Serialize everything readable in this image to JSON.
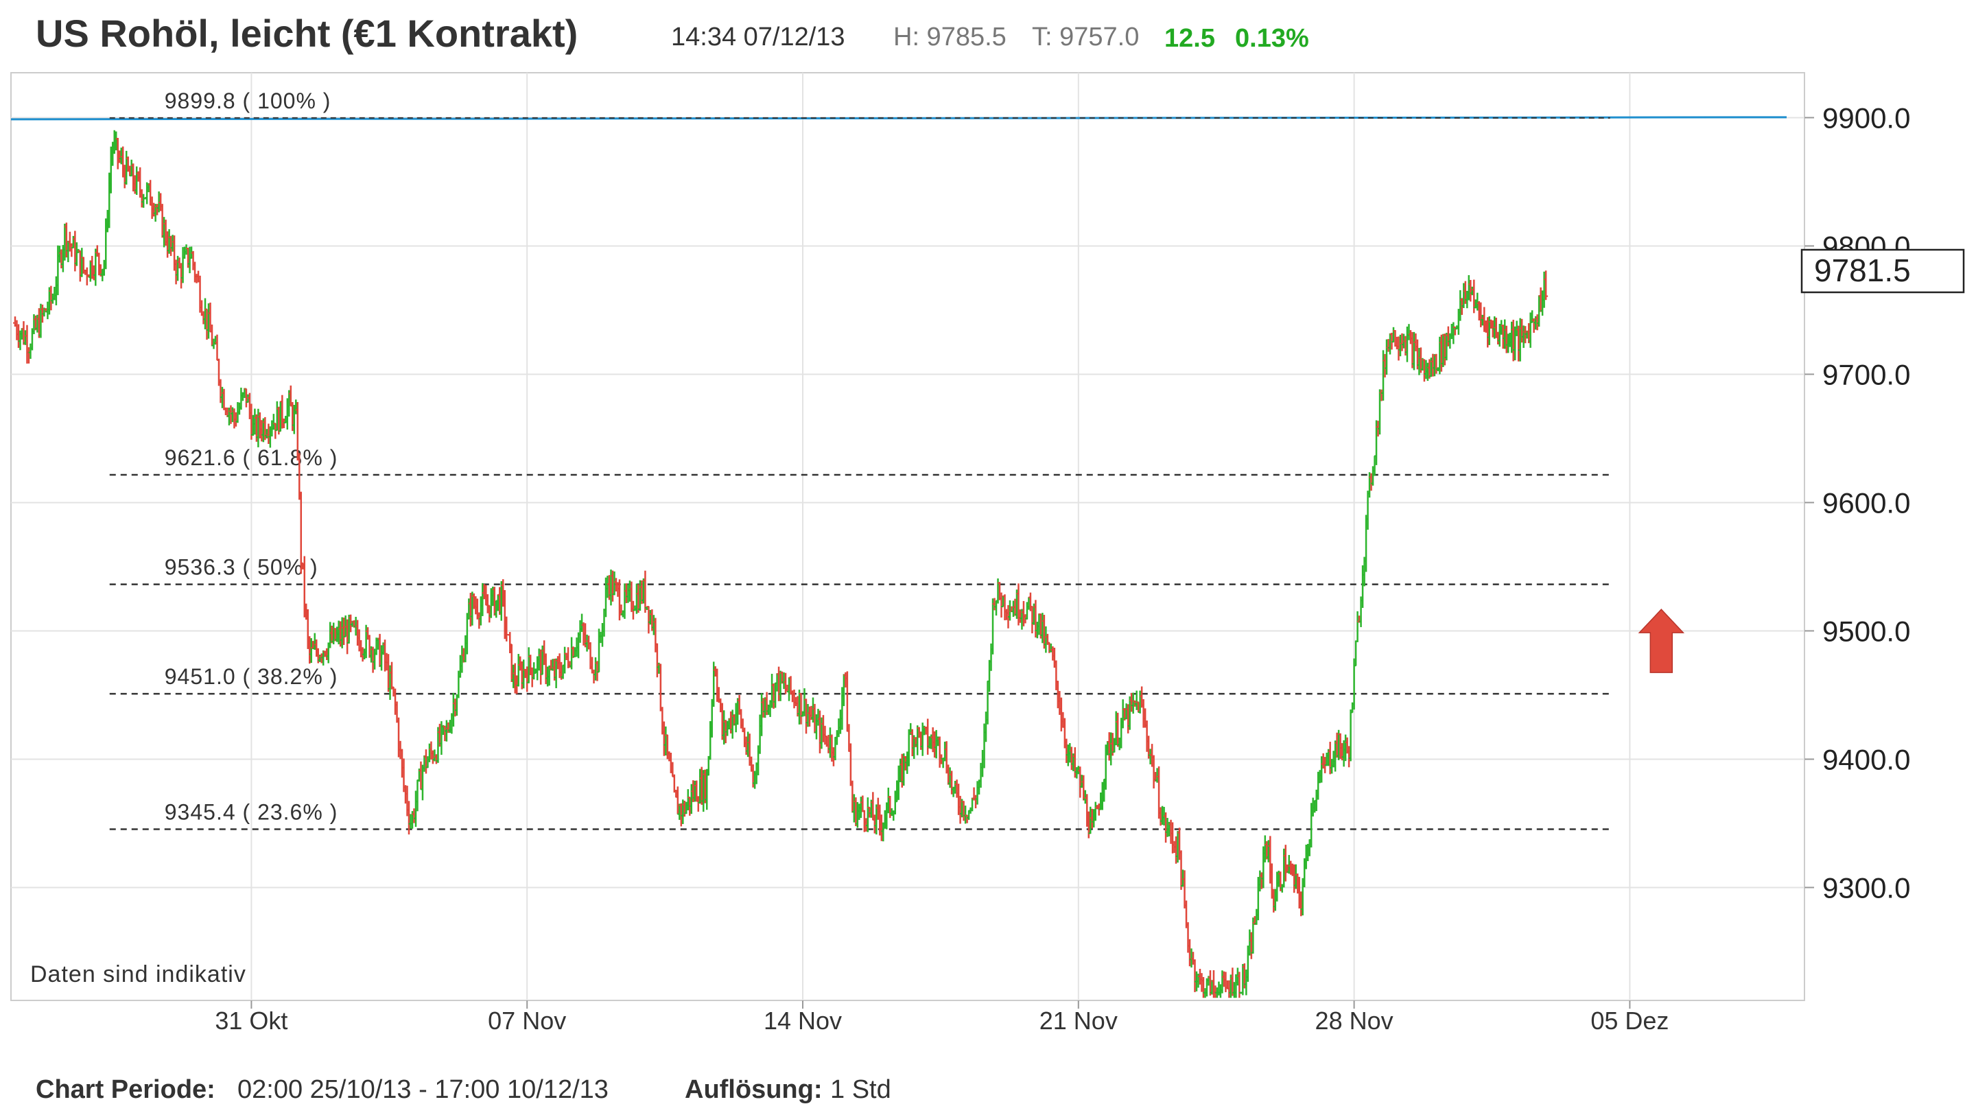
{
  "header": {
    "title": "US Rohöl, leicht (€1 Kontrakt)",
    "time": "14:34 07/12/13",
    "high": "H: 9785.5",
    "low": "T: 9757.0",
    "change": "12.5",
    "change_pct": "0.13%"
  },
  "colors": {
    "up": "#2db52d",
    "down": "#e0463a",
    "change": "#22aa22",
    "fib_top": "#1f8fce",
    "grid": "#e3e3e3"
  },
  "footer": {
    "period_label": "Chart Periode:",
    "period_value": "02:00 25/10/13 - 17:00 10/12/13",
    "resolution_label": "Auflösung:",
    "resolution_value": "1 Std"
  },
  "chart_data": {
    "type": "ohlc",
    "resolution": "1 Std",
    "ylim": [
      9212,
      9935
    ],
    "y_ticks": [
      9300,
      9400,
      9500,
      9600,
      9700,
      9800,
      9900
    ],
    "y_tick_labels": [
      "9300.0",
      "9400.0",
      "9500.0",
      "9600.0",
      "9700.0",
      "9800.0",
      "9900.0"
    ],
    "x_tick_labels": [
      "31 Okt",
      "07 Nov",
      "14 Nov",
      "21 Nov",
      "28 Nov",
      "05 Dez"
    ],
    "x_tick_day_index": [
      6,
      13,
      20,
      27,
      34,
      41
    ],
    "x_range_days": [
      0,
      44.6
    ],
    "current_price": "9781.5",
    "note": "Daten sind indikativ",
    "fib_levels": [
      {
        "value": 9899.8,
        "label": "9899.8 ( 100% )"
      },
      {
        "value": 9621.6,
        "label": "9621.6 ( 61.8% )"
      },
      {
        "value": 9536.3,
        "label": "9536.3 ( 50% )"
      },
      {
        "value": 9451.0,
        "label": "9451.0 ( 38.2% )"
      },
      {
        "value": 9345.4,
        "label": "9345.4 ( 23.6% )"
      }
    ],
    "fib_range_days": [
      2.4,
      40.5
    ],
    "signal": {
      "type": "arrow-up",
      "day": 41.8,
      "price": 9490
    },
    "waypoints": [
      [
        0.0,
        9740
      ],
      [
        0.4,
        9725
      ],
      [
        1.0,
        9760
      ],
      [
        1.3,
        9810
      ],
      [
        1.8,
        9780
      ],
      [
        2.1,
        9790
      ],
      [
        2.3,
        9785
      ],
      [
        2.5,
        9880
      ],
      [
        2.8,
        9860
      ],
      [
        3.2,
        9845
      ],
      [
        3.6,
        9835
      ],
      [
        3.9,
        9805
      ],
      [
        4.2,
        9780
      ],
      [
        4.5,
        9795
      ],
      [
        4.8,
        9755
      ],
      [
        5.1,
        9720
      ],
      [
        5.3,
        9685
      ],
      [
        5.6,
        9665
      ],
      [
        5.9,
        9685
      ],
      [
        6.1,
        9655
      ],
      [
        6.3,
        9660
      ],
      [
        6.7,
        9665
      ],
      [
        7.0,
        9675
      ],
      [
        7.2,
        9660
      ],
      [
        7.3,
        9560
      ],
      [
        7.5,
        9480
      ],
      [
        8.0,
        9490
      ],
      [
        8.5,
        9500
      ],
      [
        9.0,
        9490
      ],
      [
        9.4,
        9480
      ],
      [
        9.7,
        9440
      ],
      [
        9.9,
        9380
      ],
      [
        10.1,
        9350
      ],
      [
        10.4,
        9395
      ],
      [
        11.0,
        9420
      ],
      [
        11.3,
        9460
      ],
      [
        11.6,
        9520
      ],
      [
        12.0,
        9520
      ],
      [
        12.4,
        9525
      ],
      [
        12.7,
        9460
      ],
      [
        13.0,
        9470
      ],
      [
        13.4,
        9475
      ],
      [
        13.7,
        9465
      ],
      [
        14.0,
        9475
      ],
      [
        14.4,
        9500
      ],
      [
        14.8,
        9470
      ],
      [
        15.1,
        9540
      ],
      [
        15.5,
        9520
      ],
      [
        16.0,
        9530
      ],
      [
        16.3,
        9500
      ],
      [
        16.5,
        9420
      ],
      [
        16.8,
        9365
      ],
      [
        17.0,
        9360
      ],
      [
        17.3,
        9375
      ],
      [
        17.6,
        9380
      ],
      [
        17.8,
        9480
      ],
      [
        18.0,
        9420
      ],
      [
        18.4,
        9440
      ],
      [
        18.8,
        9380
      ],
      [
        19.0,
        9440
      ],
      [
        19.4,
        9460
      ],
      [
        19.8,
        9450
      ],
      [
        20.1,
        9440
      ],
      [
        20.5,
        9420
      ],
      [
        20.9,
        9410
      ],
      [
        21.1,
        9470
      ],
      [
        21.3,
        9360
      ],
      [
        21.6,
        9360
      ],
      [
        22.0,
        9350
      ],
      [
        22.4,
        9370
      ],
      [
        22.8,
        9420
      ],
      [
        23.2,
        9415
      ],
      [
        23.6,
        9410
      ],
      [
        23.9,
        9370
      ],
      [
        24.3,
        9360
      ],
      [
        24.6,
        9390
      ],
      [
        24.9,
        9530
      ],
      [
        25.3,
        9520
      ],
      [
        25.6,
        9520
      ],
      [
        26.0,
        9510
      ],
      [
        26.2,
        9490
      ],
      [
        26.4,
        9475
      ],
      [
        26.8,
        9400
      ],
      [
        27.1,
        9380
      ],
      [
        27.4,
        9340
      ],
      [
        27.8,
        9410
      ],
      [
        28.2,
        9430
      ],
      [
        28.6,
        9445
      ],
      [
        28.9,
        9400
      ],
      [
        29.2,
        9350
      ],
      [
        29.6,
        9330
      ],
      [
        29.8,
        9260
      ],
      [
        30.1,
        9225
      ],
      [
        30.5,
        9218
      ],
      [
        30.9,
        9222
      ],
      [
        31.3,
        9230
      ],
      [
        31.6,
        9290
      ],
      [
        31.8,
        9340
      ],
      [
        32.0,
        9290
      ],
      [
        32.3,
        9320
      ],
      [
        32.7,
        9290
      ],
      [
        33.0,
        9370
      ],
      [
        33.3,
        9395
      ],
      [
        33.6,
        9410
      ],
      [
        33.9,
        9405
      ],
      [
        34.1,
        9490
      ],
      [
        34.4,
        9600
      ],
      [
        34.7,
        9680
      ],
      [
        34.9,
        9730
      ],
      [
        35.3,
        9730
      ],
      [
        35.6,
        9715
      ],
      [
        35.9,
        9700
      ],
      [
        36.3,
        9720
      ],
      [
        36.6,
        9740
      ],
      [
        37.0,
        9770
      ],
      [
        37.2,
        9745
      ],
      [
        37.6,
        9735
      ],
      [
        38.0,
        9730
      ],
      [
        38.3,
        9725
      ],
      [
        38.7,
        9750
      ],
      [
        38.9,
        9770
      ]
    ]
  }
}
